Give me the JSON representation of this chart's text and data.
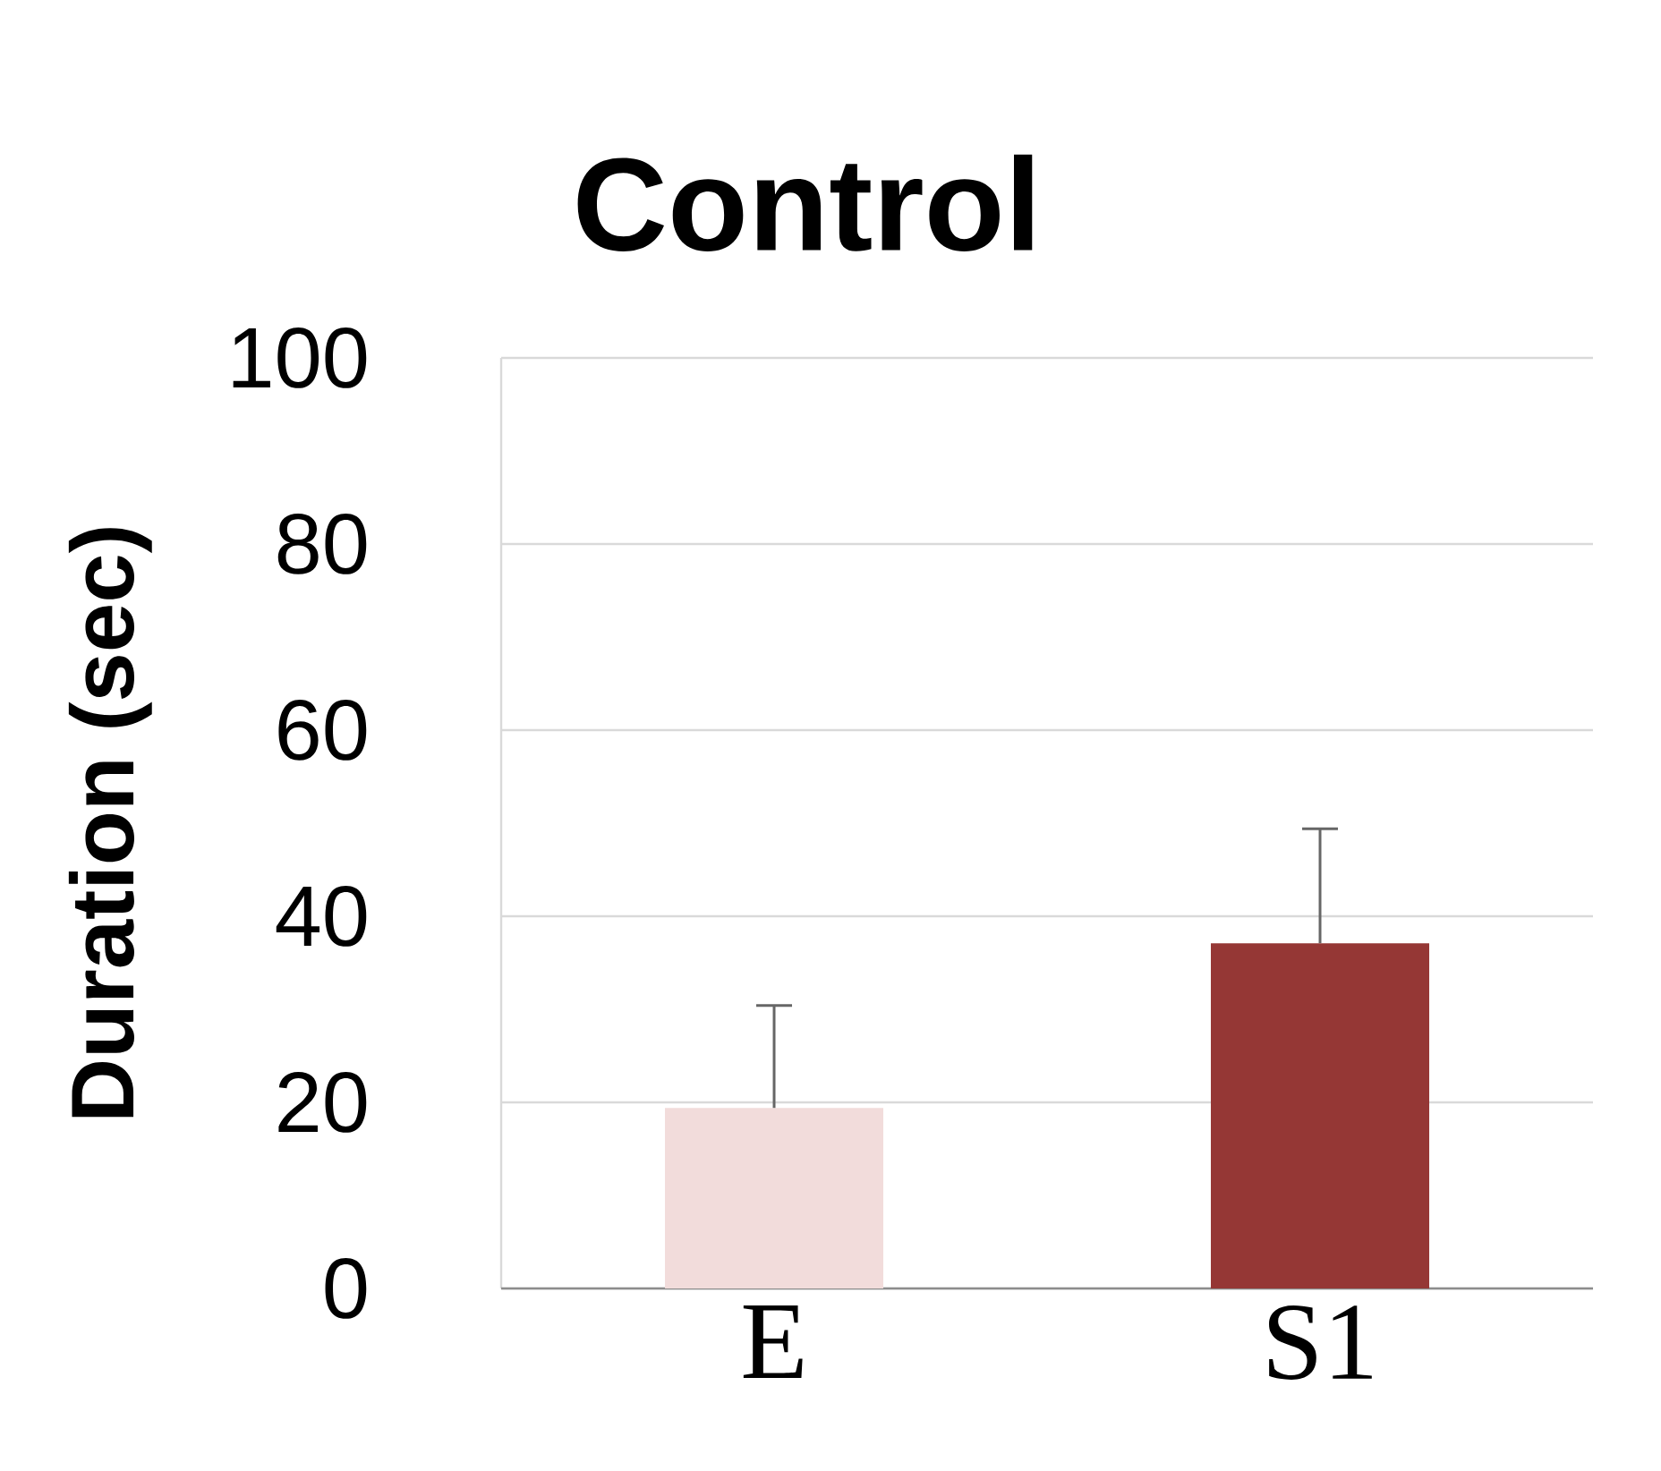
{
  "chart_data": {
    "type": "bar",
    "title": "Control",
    "ylabel": "Duration (sec)",
    "categories": [
      "E",
      "S1"
    ],
    "values": [
      19.4,
      37.1
    ],
    "colors": [
      "#f2dcdb",
      "#953735"
    ],
    "errors": [
      [
        19.4,
        30.4
      ],
      [
        37.1,
        49.4
      ]
    ],
    "ylim": [
      0,
      100
    ],
    "yticks": [
      0,
      20,
      40,
      60,
      80,
      100
    ],
    "grid": "y"
  }
}
